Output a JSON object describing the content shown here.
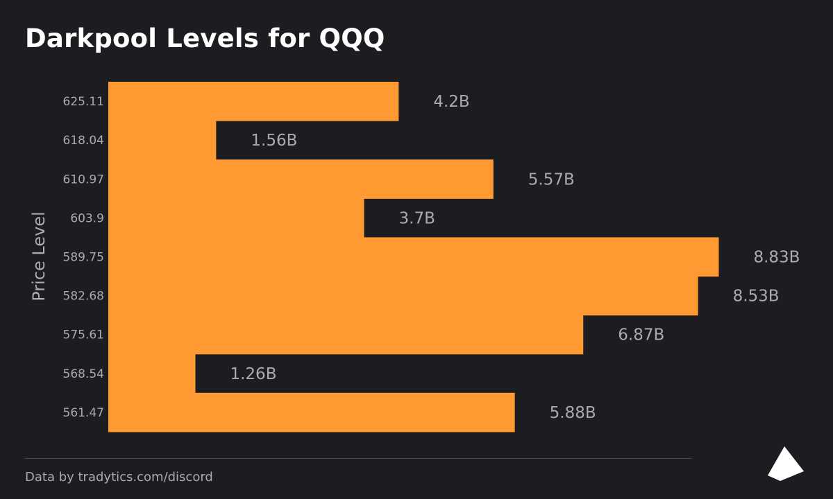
{
  "title": "Darkpool Levels for QQQ",
  "footer": {
    "credit": "Data by tradytics.com/discord"
  },
  "logo": {
    "icon": "pyramid-logo-icon"
  },
  "colors": {
    "background": "#1c1d21",
    "bar": "#ff9a33",
    "label": "#a9abb0",
    "title": "#ffffff"
  },
  "chart_data": {
    "type": "bar",
    "orientation": "horizontal",
    "ylabel": "Price Level",
    "xlabel": "",
    "grid": false,
    "categories": [
      "625.11",
      "618.04",
      "610.97",
      "603.9",
      "589.75",
      "582.68",
      "575.61",
      "568.54",
      "561.47"
    ],
    "values": [
      4.2,
      1.56,
      5.57,
      3.7,
      8.83,
      8.53,
      6.87,
      1.26,
      5.88
    ],
    "value_labels": [
      "4.2B",
      "1.56B",
      "5.57B",
      "3.7B",
      "8.83B",
      "8.53B",
      "6.87B",
      "1.26B",
      "5.88B"
    ],
    "unit": "B"
  }
}
